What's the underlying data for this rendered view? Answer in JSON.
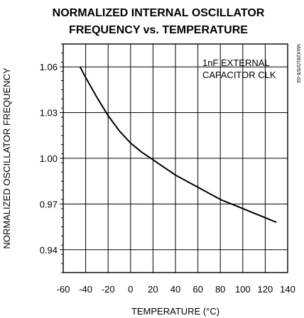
{
  "chart_data": {
    "type": "line",
    "title": [
      "NORMALIZED INTERNAL OSCILLATOR",
      "FREQUENCY vs. TEMPERATURE"
    ],
    "xlabel": "TEMPERATURE (°C)",
    "ylabel": "NORMALIZED OSCILLATOR FREQUENCY",
    "xlim": [
      -60,
      140
    ],
    "ylim": [
      0.925,
      1.075
    ],
    "x_ticks": [
      -60,
      -40,
      -20,
      0,
      20,
      40,
      60,
      80,
      100,
      120,
      140
    ],
    "y_ticks": [
      0.94,
      0.97,
      1.0,
      1.03,
      1.06
    ],
    "x_tick_labels": [
      "-60",
      "-40",
      "-20",
      "0",
      "20",
      "40",
      "60",
      "80",
      "100",
      "120",
      "140"
    ],
    "y_tick_labels": [
      "0.94",
      "0.97",
      "1.00",
      "1.03",
      "1.06"
    ],
    "grid": true,
    "annotation": [
      "1nF EXTERNAL",
      "CAPACITOR CLK"
    ],
    "reference_id": "MAX291/2/5/6-03",
    "series": [
      {
        "x": [
          -45,
          -40,
          -30,
          -20,
          -10,
          0,
          10,
          20,
          30,
          40,
          50,
          60,
          70,
          80,
          90,
          100,
          110,
          120,
          130
        ],
        "y": [
          1.06,
          1.053,
          1.04,
          1.028,
          1.018,
          1.01,
          1.004,
          0.999,
          0.994,
          0.989,
          0.985,
          0.981,
          0.977,
          0.973,
          0.97,
          0.967,
          0.964,
          0.961,
          0.958
        ]
      }
    ]
  }
}
